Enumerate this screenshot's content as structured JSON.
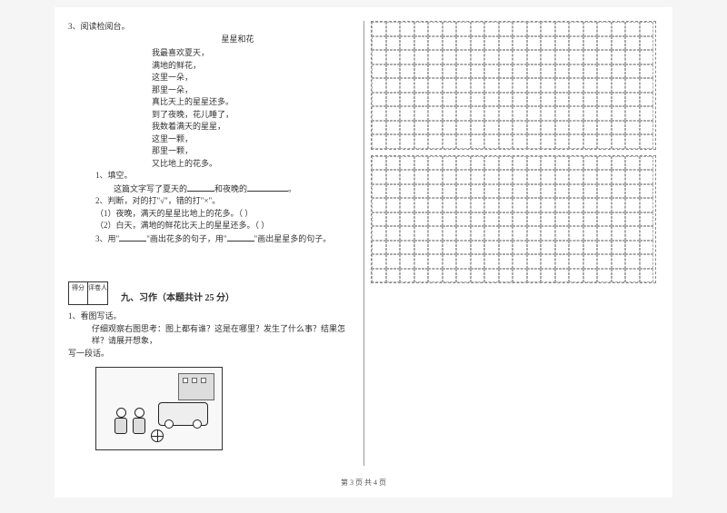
{
  "q3": {
    "num": "3、",
    "title": "阅读检阅台。",
    "poemTitle": "星星和花",
    "lines": [
      "我最喜欢夏天，",
      "满地的鲜花，",
      "这里一朵，",
      "那里一朵，",
      "真比天上的星星还多。",
      "到了夜晚，花儿睡了，",
      "我数着满天的星星，",
      "这里一颗，",
      "那里一颗，",
      "又比地上的花多。"
    ],
    "sub1": {
      "num": "1、填空。",
      "text_a": "这篇文字写了夏天的",
      "text_b": "和夜晚的",
      "text_c": "。"
    },
    "sub2": {
      "num": "2、判断，对的打\"√\"，错的打\"×\"。",
      "a": "（1）夜晚，满天的星星比地上的花多。（    ）",
      "b": "（2）白天，满地的鲜花比天上的星星还多。（    ）"
    },
    "sub3": {
      "a": "3、用\"",
      "b": "\"画出花多的句子，用\"",
      "c": "\"画出星星多的句子。"
    }
  },
  "score": {
    "c1": "得分",
    "c2": "评卷人"
  },
  "section9": "九、习作（本题共计 25 分）",
  "q1w": {
    "num": "1、看图写话。",
    "text": "仔细观察右图思考：图上都有谁？这是在哪里？发生了什么事？结果怎样？请展开想象，",
    "text2": "写一段话。"
  },
  "footer": "第 3 页  共 4 页"
}
